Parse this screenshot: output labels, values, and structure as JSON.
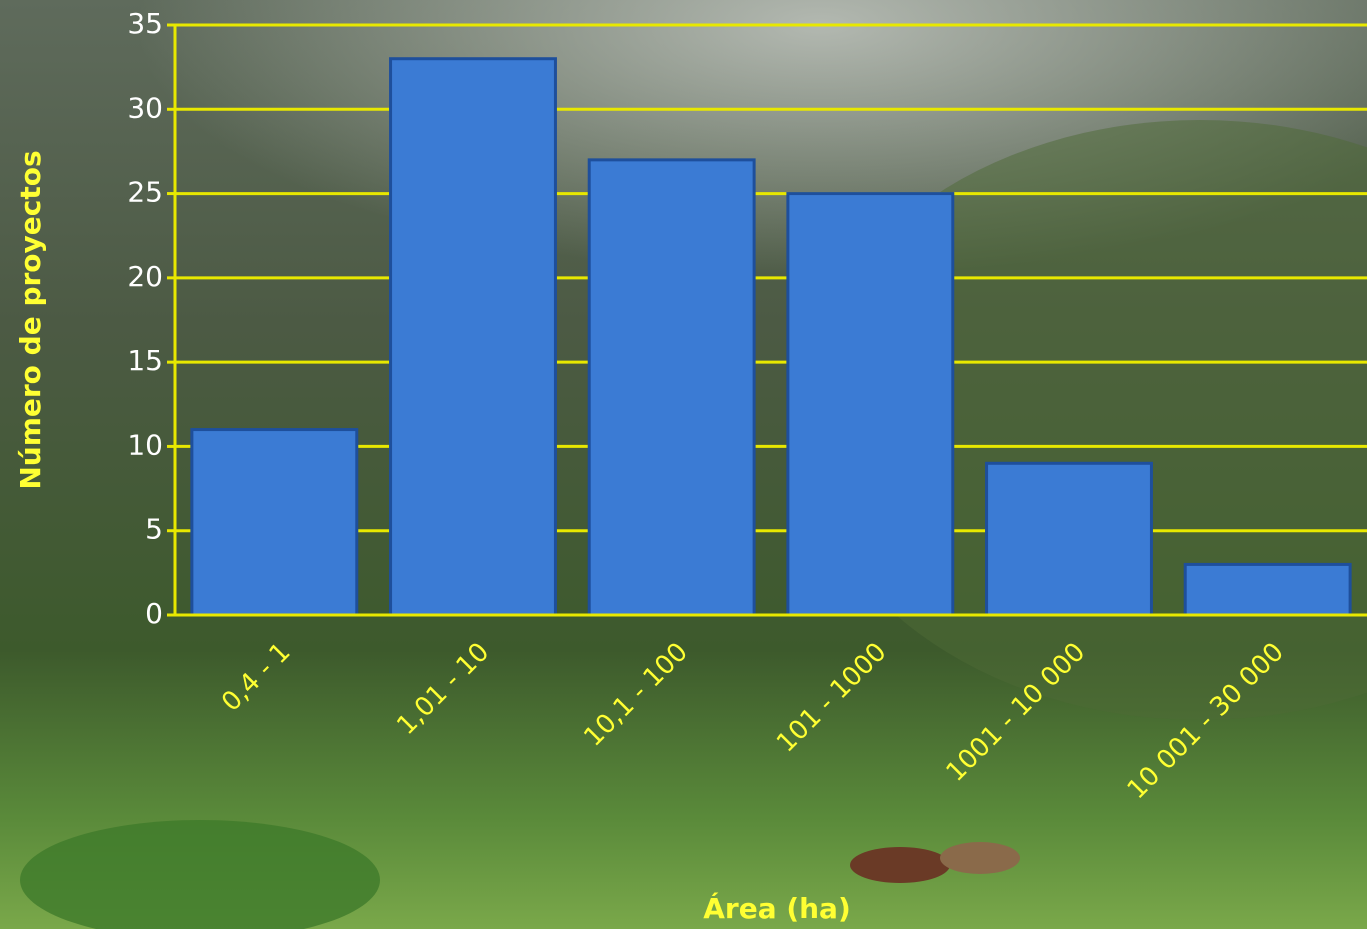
{
  "chart_data": {
    "type": "bar",
    "x_label": "Área (ha)",
    "y_label": "Número de proyectos",
    "categories": [
      "0,4 - 1",
      "1,01 - 10",
      "10,1 - 100",
      "101 - 1000",
      "1001 - 10 000",
      "10 001 - 30 000"
    ],
    "values": [
      11,
      33,
      27,
      25,
      9,
      3
    ],
    "color": "#3b7bd4",
    "grid_color": "#e8e800",
    "ylim": [
      0,
      35
    ],
    "yticks": [
      0,
      5,
      10,
      15,
      20,
      25,
      30,
      35
    ],
    "grid": true
  }
}
